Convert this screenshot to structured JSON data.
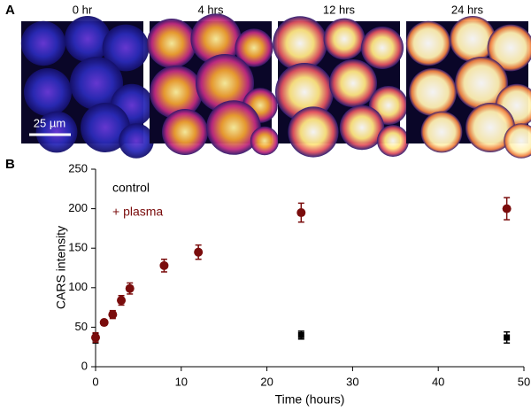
{
  "panel_a": {
    "label": "A",
    "images": [
      {
        "label": "0 hr"
      },
      {
        "label": "4 hrs"
      },
      {
        "label": "12 hrs"
      },
      {
        "label": "24 hrs"
      }
    ],
    "scale_bar": "25 µm"
  },
  "chart_data": {
    "type": "scatter",
    "panel_label": "B",
    "x_label": "Time (hours)",
    "y_label": "CARS intensity",
    "xlim": [
      0,
      50
    ],
    "xticks": [
      0,
      10,
      20,
      30,
      40,
      50
    ],
    "ylim": [
      0,
      250
    ],
    "yticks": [
      0,
      50,
      100,
      150,
      200,
      250
    ],
    "legend": "upper left",
    "series": [
      {
        "name": "control",
        "color": "#000000",
        "marker": "square",
        "x": [
          0,
          24,
          48
        ],
        "values": [
          36,
          40,
          37
        ],
        "errors": [
          6,
          5,
          7
        ]
      },
      {
        "name": "+ plasma",
        "color": "#7a0c0c",
        "marker": "circle",
        "x": [
          0,
          1,
          2,
          3,
          4,
          8,
          12,
          24,
          48
        ],
        "values": [
          37,
          56,
          66,
          84,
          99,
          128,
          145,
          195,
          200
        ],
        "errors": [
          6,
          3,
          5,
          6,
          7,
          8,
          9,
          12,
          14
        ]
      }
    ]
  }
}
